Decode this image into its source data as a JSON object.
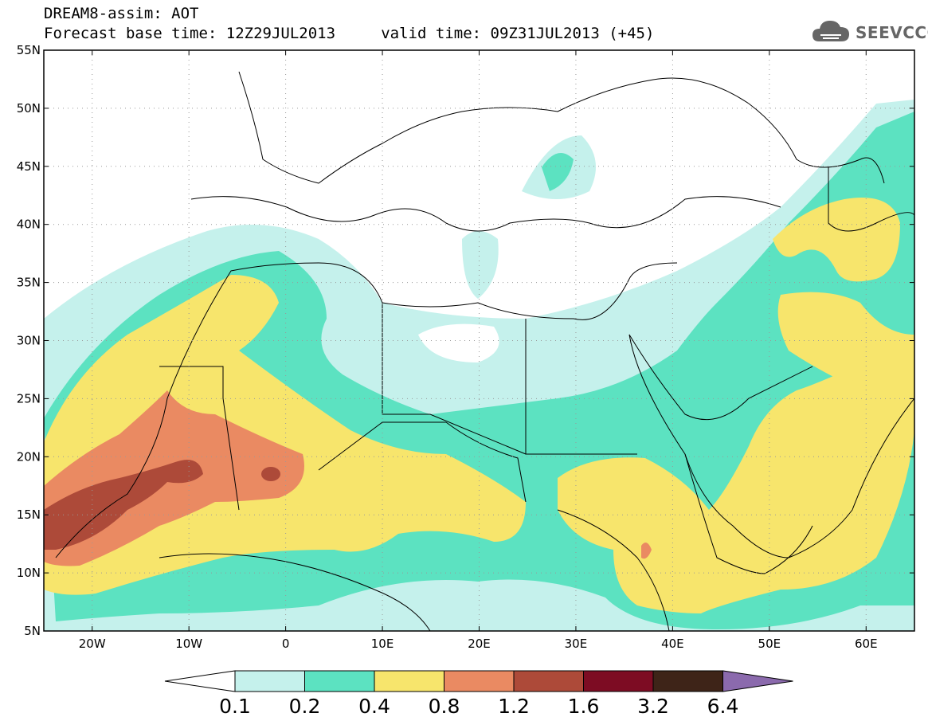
{
  "title": {
    "line1": "DREAM8-assim: AOT",
    "line2": "Forecast base time: 12Z29JUL2013     valid time: 09Z31JUL2013 (+45)"
  },
  "logo": {
    "text": "SEEVCCC",
    "icon": "cloud-icon"
  },
  "map": {
    "lon_range": [
      -25,
      65
    ],
    "lat_range": [
      5,
      55
    ],
    "lat_ticks": [
      "5N",
      "10N",
      "15N",
      "20N",
      "25N",
      "30N",
      "35N",
      "40N",
      "45N",
      "50N",
      "55N"
    ],
    "lon_ticks": [
      "20W",
      "10W",
      "0",
      "10E",
      "20E",
      "30E",
      "40E",
      "50E",
      "60E"
    ]
  },
  "colorbar": {
    "colors": [
      "#ffffff",
      "#c5f1ec",
      "#5ce2c1",
      "#f7e56c",
      "#ea8a62",
      "#ad4a39",
      "#7d0c23",
      "#3e2418",
      "#8b6aad"
    ],
    "labels": [
      "0.1",
      "0.2",
      "0.4",
      "0.8",
      "1.2",
      "1.6",
      "3.2",
      "6.4"
    ]
  }
}
